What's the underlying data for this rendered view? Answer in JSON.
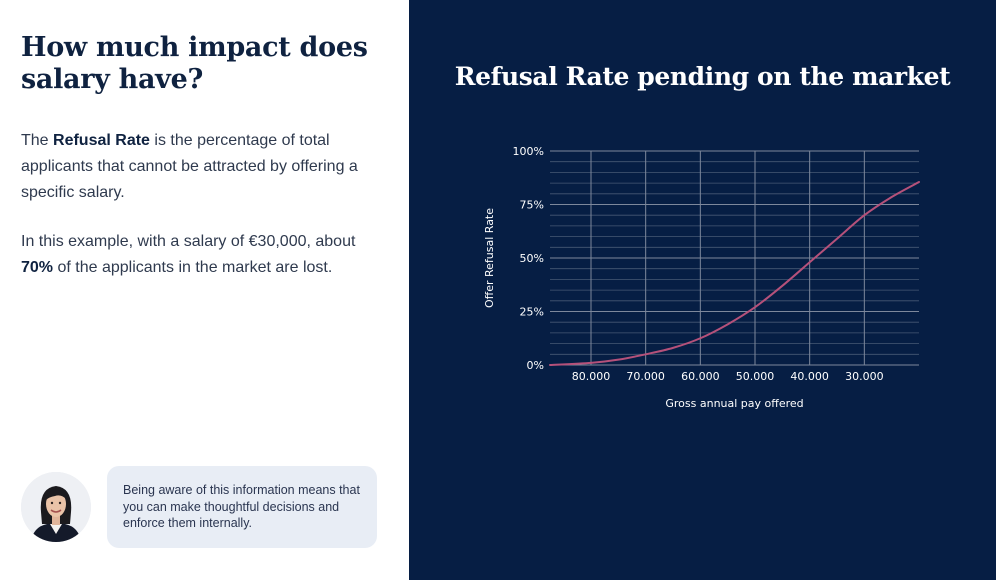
{
  "intro": {
    "heading": "How much impact does salary have?",
    "para1_before": "The ",
    "para1_bold": "Refusal Rate",
    "para1_after": " is the percentage of total applicants that cannot be attracted by offering a specific salary.",
    "para2_before": "In this example, with a salary of €30,000, about ",
    "para2_bold": "70%",
    "para2_after": " of the applicants in the market are lost."
  },
  "callout": {
    "text": "Being aware of this information means that you can make thoughtful decisions and enforce them internally."
  },
  "colors": {
    "panel_background": "#061e44",
    "curve": "#b5517a",
    "grid": "#7d889c",
    "text_dark": "#0f2240"
  },
  "chart_data": {
    "type": "line",
    "title": "Refusal Rate pending on the market",
    "xlabel": "Gross annual pay offered",
    "ylabel": "Offer Refusal Rate",
    "x_ticks": [
      "80.000",
      "70.000",
      "60.000",
      "50.000",
      "40.000",
      "30.000"
    ],
    "x_tick_values": [
      80000,
      70000,
      60000,
      50000,
      40000,
      30000
    ],
    "y_ticks": [
      "0%",
      "25%",
      "50%",
      "75%",
      "100%"
    ],
    "y_tick_values": [
      0,
      25,
      50,
      75,
      100
    ],
    "xlim": [
      87500,
      20000
    ],
    "ylim": [
      0,
      100
    ],
    "x_reversed": true,
    "grid": true,
    "series": [
      {
        "color": "#b5517a",
        "x": [
          87500,
          80000,
          75000,
          70000,
          65000,
          60000,
          55000,
          50000,
          45000,
          40000,
          35000,
          30000,
          25000,
          20000
        ],
        "y": [
          0,
          1,
          2.5,
          5,
          8,
          12.5,
          19,
          27,
          37,
          48,
          59,
          70,
          78.5,
          85.5
        ]
      }
    ]
  }
}
